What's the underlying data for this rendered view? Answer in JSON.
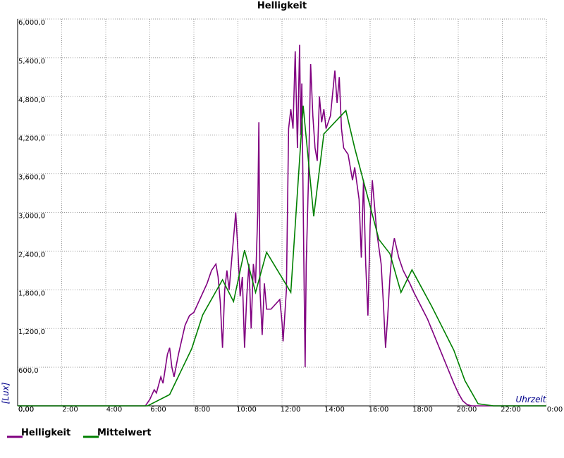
{
  "chart_data": {
    "type": "line",
    "title": "Helligkeit",
    "x_label": "Uhrzeit",
    "y_label": "[Lux]",
    "xlim": [
      0,
      24
    ],
    "ylim": [
      0,
      6000
    ],
    "xticks": [
      {
        "value": 0,
        "label": "0,00"
      },
      {
        "value": 2,
        "label": "2:00"
      },
      {
        "value": 4,
        "label": "4:00"
      },
      {
        "value": 6,
        "label": "6:00"
      },
      {
        "value": 8,
        "label": "8:00"
      },
      {
        "value": 10,
        "label": "10:00"
      },
      {
        "value": 12,
        "label": "12:00"
      },
      {
        "value": 14,
        "label": "14:00"
      },
      {
        "value": 16,
        "label": "16:00"
      },
      {
        "value": 18,
        "label": "18:00"
      },
      {
        "value": 20,
        "label": "20:00"
      },
      {
        "value": 22,
        "label": "22:00"
      },
      {
        "value": 24,
        "label": "0:00"
      }
    ],
    "yticks": [
      {
        "value": 0,
        "label": "0,00"
      },
      {
        "value": 600,
        "label": "600,0"
      },
      {
        "value": 1200,
        "label": "1,200,0"
      },
      {
        "value": 1800,
        "label": "1,800,0"
      },
      {
        "value": 2400,
        "label": "2,400,0"
      },
      {
        "value": 3000,
        "label": "3,000,0"
      },
      {
        "value": 3600,
        "label": "3,600,0"
      },
      {
        "value": 4200,
        "label": "4,200,0"
      },
      {
        "value": 4800,
        "label": "4,800,0"
      },
      {
        "value": 5400,
        "label": "5,400,0"
      },
      {
        "value": 6000,
        "label": "6,000,0"
      }
    ],
    "grid": true,
    "legend": "bottom",
    "series": [
      {
        "name": "Helligkeit",
        "color": "#800080",
        "x": [
          0,
          5.8,
          6.0,
          6.2,
          6.3,
          6.5,
          6.6,
          6.8,
          6.9,
          7.0,
          7.1,
          7.3,
          7.5,
          7.6,
          7.8,
          8.0,
          8.2,
          8.4,
          8.6,
          8.8,
          9.0,
          9.1,
          9.2,
          9.3,
          9.4,
          9.5,
          9.6,
          9.8,
          9.9,
          10.0,
          10.1,
          10.2,
          10.3,
          10.4,
          10.5,
          10.6,
          10.7,
          10.8,
          10.9,
          10.95,
          11.0,
          11.1,
          11.2,
          11.3,
          11.5,
          11.9,
          12.0,
          12.05,
          12.2,
          12.3,
          12.4,
          12.5,
          12.6,
          12.7,
          12.8,
          12.85,
          12.9,
          13.0,
          13.05,
          13.1,
          13.2,
          13.3,
          13.4,
          13.5,
          13.6,
          13.7,
          13.8,
          13.9,
          14.0,
          14.2,
          14.4,
          14.5,
          14.6,
          14.7,
          14.8,
          15.0,
          15.2,
          15.3,
          15.5,
          15.6,
          15.7,
          15.8,
          15.9,
          16.0,
          16.1,
          16.3,
          16.5,
          16.6,
          16.7,
          16.8,
          16.9,
          17.0,
          17.1,
          17.3,
          17.5,
          17.8,
          18.0,
          18.3,
          18.6,
          18.9,
          19.2,
          19.5,
          19.8,
          20.0,
          20.2,
          20.4,
          20.6,
          24
        ],
        "values": [
          0,
          0,
          100,
          250,
          200,
          450,
          350,
          800,
          900,
          600,
          450,
          800,
          1100,
          1250,
          1400,
          1450,
          1600,
          1750,
          1900,
          2100,
          2200,
          2000,
          1600,
          900,
          1800,
          2100,
          1800,
          2600,
          3000,
          2400,
          1700,
          2000,
          900,
          1700,
          2200,
          1200,
          2200,
          1900,
          3000,
          4400,
          1800,
          1100,
          1900,
          1500,
          1500,
          1650,
          1300,
          1000,
          1800,
          4300,
          4600,
          4300,
          5500,
          4000,
          5600,
          4200,
          5000,
          2000,
          600,
          2200,
          3500,
          5300,
          4500,
          4000,
          3800,
          4800,
          4400,
          4600,
          4300,
          4500,
          5200,
          4700,
          5100,
          4300,
          4000,
          3900,
          3500,
          3700,
          3200,
          2300,
          3500,
          2200,
          1400,
          2800,
          3500,
          2700,
          2200,
          1600,
          900,
          1400,
          2000,
          2400,
          2600,
          2300,
          2100,
          1900,
          1750,
          1550,
          1350,
          1100,
          850,
          600,
          350,
          200,
          80,
          20,
          0,
          0
        ]
      },
      {
        "name": "Mittelwert",
        "color": "#008000",
        "x": [
          0,
          5.9,
          6.9,
          7.9,
          8.4,
          9.3,
          9.8,
          10.3,
          10.8,
          11.3,
          12.4,
          12.96,
          13.44,
          13.9,
          14.9,
          15.3,
          16.4,
          16.9,
          17.4,
          17.9,
          18.8,
          19.8,
          20.3,
          20.9,
          21.6,
          24
        ],
        "values": [
          0,
          0,
          175,
          885,
          1410,
          1956,
          1617,
          2415,
          1760,
          2383,
          1760,
          4656,
          2940,
          4219,
          4580,
          4000,
          2580,
          2360,
          1760,
          2110,
          1541,
          863,
          393,
          33,
          0,
          0
        ]
      }
    ]
  }
}
